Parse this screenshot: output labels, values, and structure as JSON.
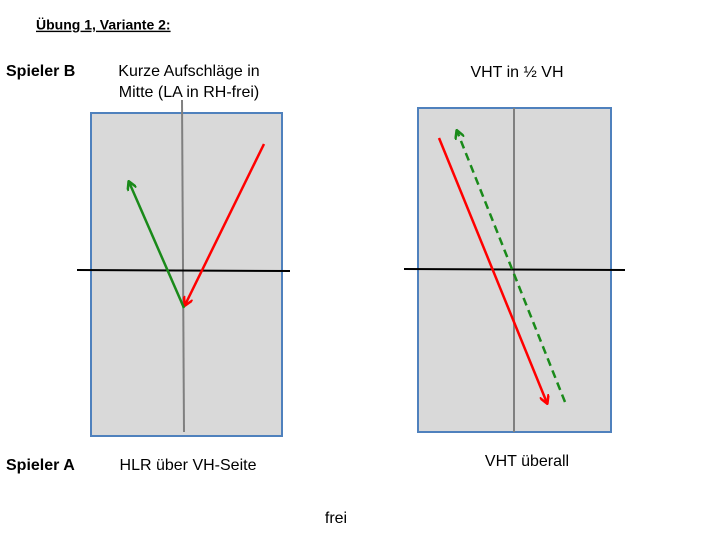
{
  "header": {
    "title": "Übung 1, Variante 2:"
  },
  "left_diagram": {
    "player_top": "Spieler B",
    "top_label": [
      "Kurze Aufschläge in",
      "Mitte (LA in RH-frei)"
    ],
    "player_bottom": "Spieler A",
    "bottom_label": "HLR über VH-Seite"
  },
  "right_diagram": {
    "top_label": "VHT in ½ VH",
    "bottom_label": "VHT überall"
  },
  "footer": {
    "note": "frei"
  }
}
